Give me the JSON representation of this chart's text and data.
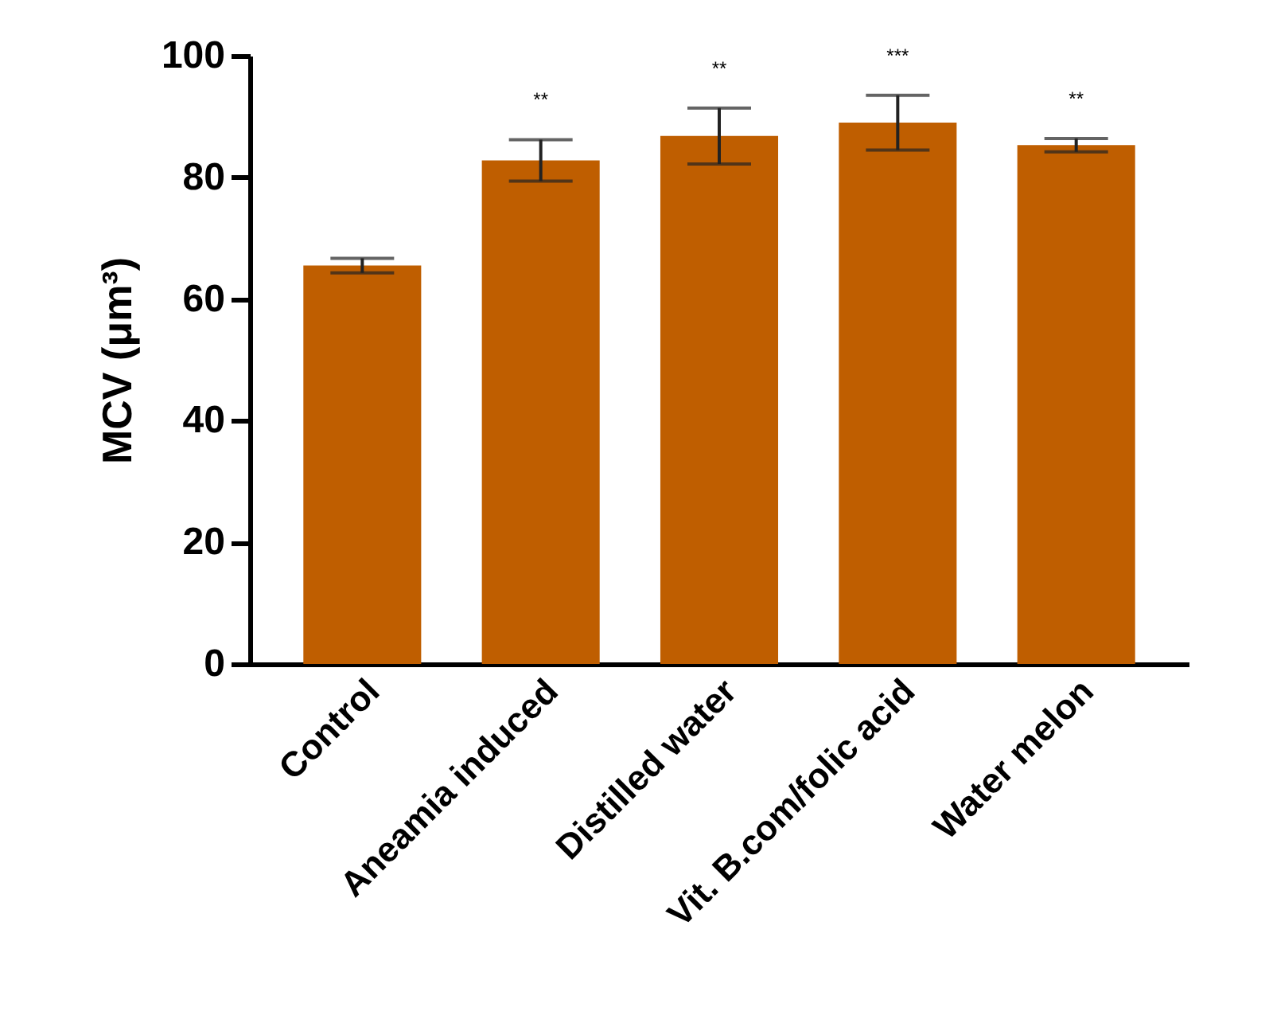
{
  "chart_data": {
    "type": "bar",
    "ylabel": "MCV (μm³)",
    "categories": [
      "Control",
      "Aneamia induced",
      "Distilled water",
      "Vit. B.com/folic acid",
      "Water melon"
    ],
    "values": [
      65.5,
      82.8,
      86.8,
      89.0,
      85.3
    ],
    "errors": [
      1.2,
      3.4,
      4.6,
      4.5,
      1.1
    ],
    "color": "#bf5e00",
    "ylim": [
      0,
      100
    ],
    "yticks": [
      0,
      20,
      40,
      60,
      80,
      100
    ],
    "grid": false,
    "annotations": [
      {
        "text": "**",
        "x": "Aneamia induced",
        "y": 86.2
      },
      {
        "text": "**",
        "x": "Distilled water",
        "y": 91.4
      },
      {
        "text": "***",
        "x": "Vit. B.com/folic acid",
        "y": 93.5
      },
      {
        "text": "**",
        "x": "Water melon",
        "y": 86.4
      }
    ]
  }
}
